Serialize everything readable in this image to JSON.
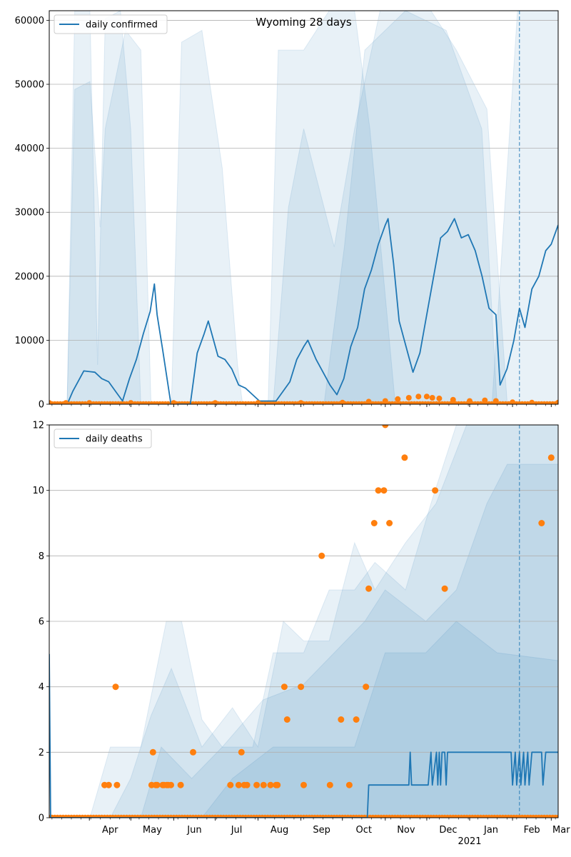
{
  "colors": {
    "series": "#1f77b4",
    "points": "#ff7f0e",
    "grid": "#b0b0b0",
    "band": "#1f77b4",
    "marker": "#1f77b4"
  },
  "chart_data": [
    {
      "type": "line",
      "title": "Wyoming 28 days",
      "xlabel": "",
      "ylabel": "",
      "legend": [
        "daily confirmed"
      ],
      "legend_position": "top-left",
      "grid": "horizontal",
      "ylim": [
        0,
        61500
      ],
      "yticks": [
        "0",
        "10000",
        "20000",
        "30000",
        "40000",
        "50000",
        "60000"
      ],
      "xticks": [
        "Apr",
        "May",
        "Jun",
        "Jul",
        "Aug",
        "Sep",
        "Oct",
        "Nov",
        "Dec",
        "Jan",
        "Feb",
        "Mar"
      ],
      "xticks_secondary": [
        "2021"
      ],
      "xlim": [
        "2020-03-03",
        "2021-03-06"
      ],
      "vertical_marker": "2021-02-06",
      "series": [
        {
          "name": "daily confirmed",
          "points": [
            [
              "2020-03-16",
              0
            ],
            [
              "2020-03-20",
              2000
            ],
            [
              "2020-03-25",
              4000
            ],
            [
              "2020-03-28",
              5200
            ],
            [
              "2020-04-05",
              5000
            ],
            [
              "2020-04-10",
              4000
            ],
            [
              "2020-04-15",
              3500
            ],
            [
              "2020-04-20",
              2000
            ],
            [
              "2020-04-25",
              500
            ],
            [
              "2020-04-30",
              4000
            ],
            [
              "2020-05-05",
              7000
            ],
            [
              "2020-05-10",
              11000
            ],
            [
              "2020-05-15",
              14500
            ],
            [
              "2020-05-18",
              18800
            ],
            [
              "2020-05-20",
              14000
            ],
            [
              "2020-05-24",
              8500
            ],
            [
              "2020-05-30",
              0
            ],
            [
              "2020-06-13",
              0
            ],
            [
              "2020-06-18",
              8000
            ],
            [
              "2020-06-23",
              11000
            ],
            [
              "2020-06-26",
              13000
            ],
            [
              "2020-07-03",
              7500
            ],
            [
              "2020-07-08",
              7000
            ],
            [
              "2020-07-13",
              5500
            ],
            [
              "2020-07-18",
              3000
            ],
            [
              "2020-07-23",
              2500
            ],
            [
              "2020-08-02",
              500
            ],
            [
              "2020-08-14",
              500
            ],
            [
              "2020-08-24",
              3500
            ],
            [
              "2020-08-29",
              7000
            ],
            [
              "2020-09-03",
              9000
            ],
            [
              "2020-09-06",
              10000
            ],
            [
              "2020-09-12",
              7000
            ],
            [
              "2020-09-17",
              5000
            ],
            [
              "2020-09-22",
              3000
            ],
            [
              "2020-09-27",
              1500
            ],
            [
              "2020-10-02",
              4000
            ],
            [
              "2020-10-07",
              9000
            ],
            [
              "2020-10-12",
              12000
            ],
            [
              "2020-10-17",
              18000
            ],
            [
              "2020-10-22",
              21000
            ],
            [
              "2020-10-27",
              25000
            ],
            [
              "2020-11-01",
              28000
            ],
            [
              "2020-11-03",
              29000
            ],
            [
              "2020-11-07",
              22000
            ],
            [
              "2020-11-11",
              13000
            ],
            [
              "2020-11-16",
              9000
            ],
            [
              "2020-11-21",
              5000
            ],
            [
              "2020-11-26",
              8000
            ],
            [
              "2020-12-01",
              14000
            ],
            [
              "2020-12-06",
              20000
            ],
            [
              "2020-12-11",
              26000
            ],
            [
              "2020-12-16",
              27000
            ],
            [
              "2020-12-21",
              29000
            ],
            [
              "2020-12-26",
              26000
            ],
            [
              "2020-12-31",
              26500
            ],
            [
              "2021-01-05",
              24000
            ],
            [
              "2021-01-10",
              20000
            ],
            [
              "2021-01-15",
              15000
            ],
            [
              "2021-01-20",
              14000
            ],
            [
              "2021-01-23",
              3000
            ],
            [
              "2021-01-28",
              5500
            ],
            [
              "2021-02-02",
              10000
            ],
            [
              "2021-02-06",
              15000
            ],
            [
              "2021-02-10",
              12000
            ],
            [
              "2021-02-15",
              18000
            ],
            [
              "2021-02-20",
              20000
            ],
            [
              "2021-02-25",
              24000
            ],
            [
              "2021-03-01",
              25000
            ],
            [
              "2021-03-06",
              28000
            ]
          ]
        },
        {
          "name": "",
          "style": "points",
          "points": [
            [
              "2020-03-03",
              200
            ],
            [
              "2020-03-15",
              200
            ],
            [
              "2020-04-01",
              200
            ],
            [
              "2020-05-01",
              200
            ],
            [
              "2020-06-01",
              200
            ],
            [
              "2020-07-01",
              200
            ],
            [
              "2020-08-01",
              200
            ],
            [
              "2020-09-01",
              200
            ],
            [
              "2020-10-01",
              250
            ],
            [
              "2020-10-20",
              400
            ],
            [
              "2020-11-01",
              500
            ],
            [
              "2020-11-10",
              800
            ],
            [
              "2020-11-18",
              1000
            ],
            [
              "2020-11-25",
              1200
            ],
            [
              "2020-12-01",
              1200
            ],
            [
              "2020-12-05",
              1000
            ],
            [
              "2020-12-10",
              900
            ],
            [
              "2020-12-20",
              700
            ],
            [
              "2021-01-01",
              500
            ],
            [
              "2021-01-12",
              600
            ],
            [
              "2021-01-20",
              500
            ],
            [
              "2021-02-01",
              300
            ],
            [
              "2021-02-15",
              250
            ],
            [
              "2021-03-06",
              250
            ]
          ]
        }
      ]
    },
    {
      "type": "line",
      "title": "",
      "xlabel": "",
      "ylabel": "",
      "legend": [
        "daily deaths"
      ],
      "legend_position": "top-left",
      "grid": "horizontal",
      "ylim": [
        0,
        12
      ],
      "yticks": [
        "0",
        "2",
        "4",
        "6",
        "8",
        "10",
        "12"
      ],
      "xticks": [
        "Apr",
        "May",
        "Jun",
        "Jul",
        "Aug",
        "Sep",
        "Oct",
        "Nov",
        "Dec",
        "Jan",
        "Feb",
        "Mar"
      ],
      "xticks_secondary": [
        "2021"
      ],
      "xlim": [
        "2020-03-03",
        "2021-03-06"
      ],
      "vertical_marker": "2021-02-06",
      "series": [
        {
          "name": "daily deaths",
          "points": [
            [
              "2020-03-03",
              5
            ],
            [
              "2020-03-04",
              0
            ],
            [
              "2020-10-19",
              0
            ],
            [
              "2020-10-20",
              1
            ],
            [
              "2020-11-06",
              1
            ],
            [
              "2020-11-07",
              1
            ],
            [
              "2020-11-18",
              1
            ],
            [
              "2020-11-19",
              2
            ],
            [
              "2020-11-20",
              1
            ],
            [
              "2020-12-02",
              1
            ],
            [
              "2020-12-04",
              2
            ],
            [
              "2020-12-05",
              1
            ],
            [
              "2020-12-08",
              2
            ],
            [
              "2020-12-09",
              1
            ],
            [
              "2020-12-10",
              2
            ],
            [
              "2020-12-11",
              1
            ],
            [
              "2020-12-12",
              2
            ],
            [
              "2020-12-14",
              2
            ],
            [
              "2020-12-15",
              1
            ],
            [
              "2020-12-16",
              2
            ],
            [
              "2020-12-20",
              2
            ],
            [
              "2021-01-31",
              2
            ],
            [
              "2021-02-01",
              1
            ],
            [
              "2021-02-03",
              2
            ],
            [
              "2021-02-04",
              1
            ],
            [
              "2021-02-06",
              2
            ],
            [
              "2021-02-07",
              1
            ],
            [
              "2021-02-09",
              2
            ],
            [
              "2021-02-10",
              1
            ],
            [
              "2021-02-12",
              2
            ],
            [
              "2021-02-13",
              1
            ],
            [
              "2021-02-15",
              2
            ],
            [
              "2021-02-22",
              2
            ],
            [
              "2021-02-23",
              1
            ],
            [
              "2021-02-25",
              2
            ],
            [
              "2021-03-06",
              2
            ]
          ]
        },
        {
          "name": "",
          "style": "points",
          "points": [
            [
              "2020-04-12",
              1
            ],
            [
              "2020-04-15",
              1
            ],
            [
              "2020-04-20",
              4
            ],
            [
              "2020-04-21",
              1
            ],
            [
              "2020-05-16",
              1
            ],
            [
              "2020-05-17",
              2
            ],
            [
              "2020-05-19",
              1
            ],
            [
              "2020-05-20",
              1
            ],
            [
              "2020-05-24",
              1
            ],
            [
              "2020-05-25",
              1
            ],
            [
              "2020-05-27",
              1
            ],
            [
              "2020-05-28",
              1
            ],
            [
              "2020-05-30",
              1
            ],
            [
              "2020-06-06",
              1
            ],
            [
              "2020-06-15",
              2
            ],
            [
              "2020-07-12",
              1
            ],
            [
              "2020-07-18",
              1
            ],
            [
              "2020-07-20",
              2
            ],
            [
              "2020-07-22",
              1
            ],
            [
              "2020-07-24",
              1
            ],
            [
              "2020-07-31",
              1
            ],
            [
              "2020-08-05",
              1
            ],
            [
              "2020-08-10",
              1
            ],
            [
              "2020-08-14",
              1
            ],
            [
              "2020-08-15",
              1
            ],
            [
              "2020-08-20",
              4
            ],
            [
              "2020-08-22",
              3
            ],
            [
              "2020-09-01",
              4
            ],
            [
              "2020-09-03",
              1
            ],
            [
              "2020-09-16",
              8
            ],
            [
              "2020-09-22",
              1
            ],
            [
              "2020-09-30",
              3
            ],
            [
              "2020-10-06",
              1
            ],
            [
              "2020-10-11",
              3
            ],
            [
              "2020-10-18",
              4
            ],
            [
              "2020-10-20",
              7
            ],
            [
              "2020-10-24",
              9
            ],
            [
              "2020-10-27",
              10
            ],
            [
              "2020-10-31",
              10
            ],
            [
              "2020-11-01",
              12
            ],
            [
              "2020-11-04",
              9
            ],
            [
              "2020-11-15",
              11
            ],
            [
              "2020-12-07",
              10
            ],
            [
              "2020-12-14",
              7
            ],
            [
              "2021-02-22",
              9
            ],
            [
              "2021-03-01",
              11
            ]
          ]
        }
      ]
    }
  ]
}
